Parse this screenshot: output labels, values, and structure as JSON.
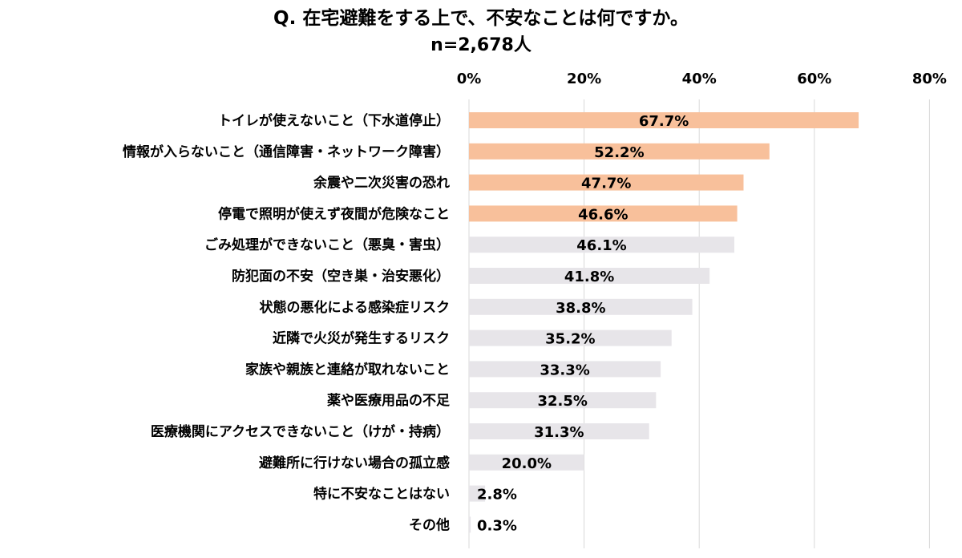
{
  "chart_data": {
    "type": "bar",
    "orientation": "horizontal",
    "title": "Q. 在宅避難をする上で、不安なことは何ですか。",
    "subtitle": "n=2,678人",
    "categories": [
      "トイレが使えないこと（下水道停止）",
      "情報が入らないこと（通信障害・ネットワーク障害）",
      "余震や二次災害の恐れ",
      "停電で照明が使えず夜間が危険なこと",
      "ごみ処理ができないこと（悪臭・害虫）",
      "防犯面の不安（空き巣・治安悪化）",
      "状態の悪化による感染症リスク",
      "近隣で火災が発生するリスク",
      "家族や親族と連絡が取れないこと",
      "薬や医療用品の不足",
      "医療機関にアクセスできないこと（けが・持病）",
      "避難所に行けない場合の孤立感",
      "特に不安なことはない",
      "その他"
    ],
    "values": [
      67.7,
      52.2,
      47.7,
      46.6,
      46.1,
      41.8,
      38.8,
      35.2,
      33.3,
      32.5,
      31.3,
      20.0,
      2.8,
      0.3
    ],
    "value_labels": [
      "67.7%",
      "52.2%",
      "47.7%",
      "46.6%",
      "46.1%",
      "41.8%",
      "38.8%",
      "35.2%",
      "33.3%",
      "32.5%",
      "31.3%",
      "20.0%",
      "2.8%",
      "0.3%"
    ],
    "highlighted_count": 4,
    "xlim": [
      0,
      80
    ],
    "xticks": [
      0,
      20,
      40,
      60,
      80
    ],
    "xtick_labels": [
      "0%",
      "20%",
      "40%",
      "60%",
      "80%"
    ],
    "xaxis_position": "top",
    "grid": true,
    "legend": "none",
    "colors": {
      "highlight": "#f8c09b",
      "normal": "#e7e5e9",
      "grid": "#d9d9d9",
      "text": "#000000"
    }
  }
}
